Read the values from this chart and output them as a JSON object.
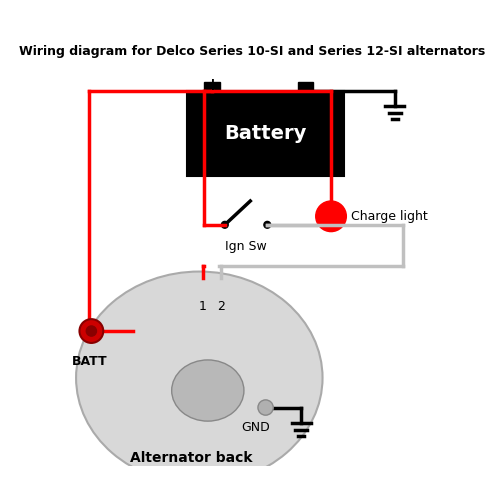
{
  "title": "Wiring diagram for Delco Series 10-SI and Series 12-SI alternators",
  "bg_color": "#ffffff",
  "battery_color": "#000000",
  "battery_text": "Battery",
  "battery_text_color": "#ffffff",
  "alt_body_color": "#d8d8d8",
  "alt_rotor_color": "#b8b8b8",
  "charge_light_color": "#ff0000",
  "charge_light_text": "Charge light",
  "ign_sw_text": "Ign Sw",
  "batt_text": "BATT",
  "gnd_text": "GND",
  "alt_back_text": "Alternator back",
  "wire_red": "#ff0000",
  "wire_gray": "#c0c0c0",
  "wire_black": "#000000"
}
